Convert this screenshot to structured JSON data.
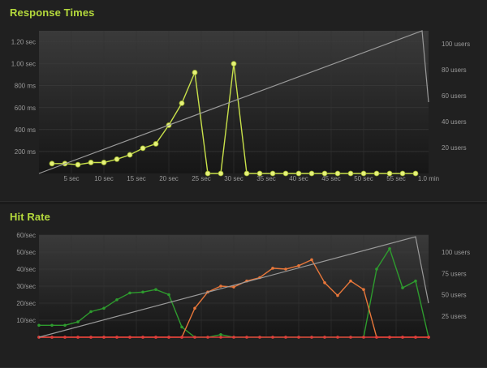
{
  "chart_data": [
    {
      "type": "line",
      "title": "Response Times",
      "x": [
        2,
        4,
        6,
        8,
        10,
        12,
        14,
        16,
        18,
        20,
        22,
        24,
        26,
        28,
        30,
        32,
        34,
        36,
        38,
        40,
        42,
        44,
        46,
        48,
        50,
        52,
        54,
        56,
        58
      ],
      "xlim": [
        0,
        60
      ],
      "x_ticks": [
        5,
        10,
        15,
        20,
        25,
        30,
        35,
        40,
        45,
        50,
        55,
        60
      ],
      "x_tick_labels": [
        "5 sec",
        "10 sec",
        "15 sec",
        "20 sec",
        "25 sec",
        "30 sec",
        "35 sec",
        "40 sec",
        "45 sec",
        "50 sec",
        "55 sec",
        "1.0 min"
      ],
      "ylim": [
        0,
        1300
      ],
      "y_ticks": [
        200,
        400,
        600,
        800,
        1000,
        1200
      ],
      "y_tick_labels": [
        "200 ms",
        "400 ms",
        "600 ms",
        "800 ms",
        "1.00 sec",
        "1.20 sec"
      ],
      "y2lim": [
        0,
        110
      ],
      "y2_ticks": [
        20,
        40,
        60,
        80,
        100
      ],
      "y2_tick_labels": [
        "20 users",
        "40 users",
        "60 users",
        "80 users",
        "100 users"
      ],
      "series": [
        {
          "axis": "left",
          "color": "#c8e04a",
          "values": [
            90,
            90,
            80,
            100,
            100,
            130,
            170,
            230,
            270,
            440,
            640,
            920,
            0,
            0,
            1000,
            0,
            0,
            0,
            0,
            0,
            0,
            0,
            0,
            0,
            0,
            0,
            0,
            0,
            0
          ]
        },
        {
          "axis": "right",
          "color": "#9a9a9a",
          "x": [
            0,
            59,
            60
          ],
          "values": [
            0,
            110,
            55
          ]
        }
      ]
    },
    {
      "type": "line",
      "title": "Hit Rate",
      "x": [
        0,
        2,
        4,
        6,
        8,
        10,
        12,
        14,
        16,
        18,
        20,
        22,
        24,
        26,
        28,
        30,
        32,
        34,
        36,
        38,
        40,
        42,
        44,
        46,
        48,
        50,
        52,
        54,
        56,
        58,
        60
      ],
      "xlim": [
        0,
        60
      ],
      "ylim": [
        0,
        60
      ],
      "y_ticks": [
        10,
        20,
        30,
        40,
        50,
        60
      ],
      "y_tick_labels": [
        "10/sec",
        "20/sec",
        "30/sec",
        "40/sec",
        "50/sec",
        "60/sec"
      ],
      "y2lim": [
        0,
        120
      ],
      "y2_ticks": [
        25,
        50,
        75,
        100
      ],
      "y2_tick_labels": [
        "25 users",
        "50 users",
        "75 users",
        "100 users"
      ],
      "series": [
        {
          "axis": "left",
          "color": "#2e9b2e",
          "values": [
            7,
            7,
            7,
            9,
            15,
            17,
            22,
            26,
            26.5,
            28,
            25,
            6,
            0,
            0,
            1.5,
            0,
            0,
            0,
            0,
            0,
            0,
            0,
            0,
            0,
            0,
            0,
            40,
            52,
            29,
            33,
            0
          ]
        },
        {
          "axis": "left",
          "color": "#e8773a",
          "values": [
            0,
            0,
            0,
            0,
            0,
            0,
            0,
            0,
            0,
            0,
            0,
            0,
            17,
            26.5,
            30,
            29.5,
            33,
            35,
            40.5,
            40,
            42,
            45.5,
            32,
            24.5,
            33,
            28,
            0,
            0,
            0,
            0,
            0
          ]
        },
        {
          "axis": "left",
          "color": "#e03a3a",
          "values": [
            0,
            0,
            0,
            0,
            0,
            0,
            0,
            0,
            0,
            0,
            0,
            0,
            0,
            0,
            0,
            0,
            0,
            0,
            0,
            0,
            0,
            0,
            0,
            0,
            0,
            0,
            0,
            0,
            0,
            0,
            0
          ]
        },
        {
          "axis": "right",
          "color": "#9a9a9a",
          "x": [
            0,
            58,
            60
          ],
          "values": [
            0,
            118,
            40
          ]
        }
      ]
    }
  ]
}
